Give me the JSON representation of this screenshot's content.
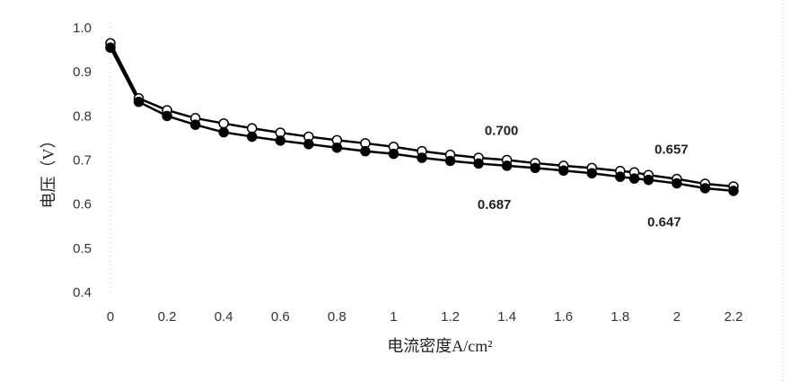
{
  "chart_data": {
    "type": "line",
    "title": "",
    "xlabel": "电流密度A/cm²",
    "ylabel": "电压（V）",
    "xlim": [
      0,
      2.2
    ],
    "ylim": [
      0.4,
      1.0
    ],
    "x_ticks": [
      "0",
      "0.2",
      "0.4",
      "0.6",
      "0.8",
      "1",
      "1.2",
      "1.4",
      "1.6",
      "1.8",
      "2",
      "2.2"
    ],
    "y_ticks": [
      "0.4",
      "0.5",
      "0.6",
      "0.7",
      "0.8",
      "0.9",
      "1.0"
    ],
    "grid": false,
    "x": [
      0,
      0.1,
      0.2,
      0.3,
      0.4,
      0.5,
      0.6,
      0.7,
      0.8,
      0.9,
      1.0,
      1.1,
      1.2,
      1.3,
      1.4,
      1.5,
      1.6,
      1.7,
      1.8,
      1.85,
      1.9,
      2.0,
      2.1,
      2.2
    ],
    "series": [
      {
        "marker": "open-circle",
        "color": "#000000",
        "values": [
          0.965,
          0.84,
          0.813,
          0.795,
          0.783,
          0.772,
          0.762,
          0.753,
          0.745,
          0.738,
          0.73,
          0.72,
          0.712,
          0.705,
          0.7,
          0.693,
          0.687,
          0.682,
          0.675,
          0.672,
          0.666,
          0.657,
          0.646,
          0.64
        ]
      },
      {
        "marker": "filled-circle",
        "color": "#000000",
        "values": [
          0.955,
          0.832,
          0.8,
          0.78,
          0.763,
          0.753,
          0.744,
          0.736,
          0.728,
          0.72,
          0.714,
          0.705,
          0.698,
          0.692,
          0.687,
          0.682,
          0.676,
          0.67,
          0.662,
          0.658,
          0.655,
          0.647,
          0.636,
          0.63
        ]
      }
    ],
    "annotations": [
      {
        "text": "0.700",
        "x": 1.4,
        "series": 0
      },
      {
        "text": "0.687",
        "x": 1.4,
        "series": 1
      },
      {
        "text": "0.657",
        "x": 2.0,
        "series": 0
      },
      {
        "text": "0.647",
        "x": 2.0,
        "series": 1
      }
    ]
  }
}
